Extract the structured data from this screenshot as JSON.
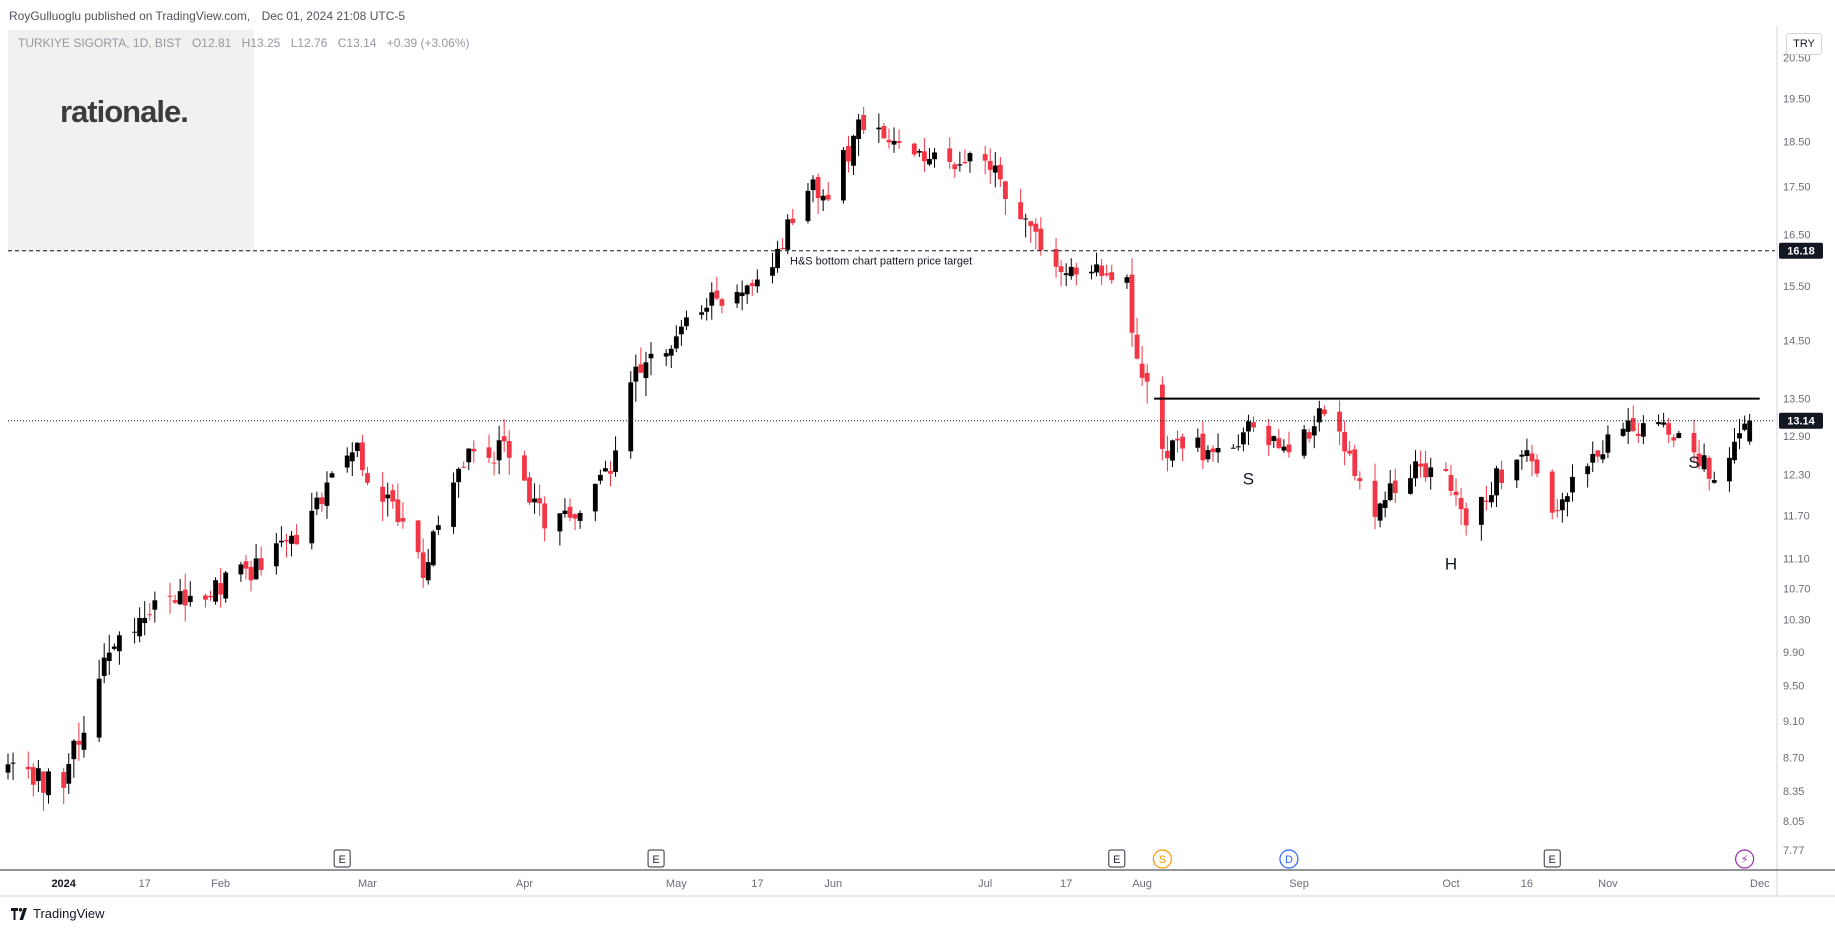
{
  "header": {
    "publisher": "RoyGulluoglu published on TradingView.com,",
    "datetime": "Dec 01, 2024 21:08 UTC-5"
  },
  "legend": {
    "symbol": "TURKIYE SIGORTA, 1D, BIST",
    "open": "O12.81",
    "high": "H13.25",
    "low": "L12.76",
    "close": "C13.14",
    "change": "+0.39 (+3.06%)"
  },
  "logo_text": "rationale.",
  "currency": "TRY",
  "footer_brand": "TradingView",
  "colors": {
    "up": "#000000",
    "down": "#f23645",
    "line": "#000000",
    "axis_text": "#6a6d78",
    "label_bg": "#131722"
  },
  "chart_data": {
    "type": "candlestick",
    "y_axis": {
      "scale": "log",
      "ticks": [
        7.77,
        8.05,
        8.35,
        8.7,
        9.1,
        9.5,
        9.9,
        10.3,
        10.7,
        11.1,
        11.7,
        12.3,
        12.9,
        13.5,
        14.5,
        15.5,
        16.5,
        17.5,
        18.5,
        19.5,
        20.5
      ],
      "tick_labels": [
        "7.77",
        "8.05",
        "8.35",
        "8.70",
        "9.10",
        "9.50",
        "9.90",
        "10.30",
        "10.70",
        "11.10",
        "11.70",
        "12.30",
        "12.90",
        "13.50",
        "14.50",
        "15.50",
        "16.50",
        "17.50",
        "18.50",
        "19.50",
        "20.50"
      ],
      "range": [
        7.6,
        21.2
      ]
    },
    "x_axis": {
      "range": [
        "2023-12-21",
        "2024-12-04"
      ],
      "ticks": [
        {
          "date": "2024-01-01",
          "label": "2024",
          "bold": true
        },
        {
          "date": "2024-01-17",
          "label": "17"
        },
        {
          "date": "2024-02-01",
          "label": "Feb"
        },
        {
          "date": "2024-03-01",
          "label": "Mar"
        },
        {
          "date": "2024-04-01",
          "label": "Apr"
        },
        {
          "date": "2024-05-01",
          "label": "May"
        },
        {
          "date": "2024-05-17",
          "label": "17"
        },
        {
          "date": "2024-06-01",
          "label": "Jun"
        },
        {
          "date": "2024-07-01",
          "label": "Jul"
        },
        {
          "date": "2024-07-17",
          "label": "17"
        },
        {
          "date": "2024-08-01",
          "label": "Aug"
        },
        {
          "date": "2024-09-01",
          "label": "Sep"
        },
        {
          "date": "2024-10-01",
          "label": "Oct"
        },
        {
          "date": "2024-10-16",
          "label": "16"
        },
        {
          "date": "2024-11-01",
          "label": "Nov"
        },
        {
          "date": "2024-12-01",
          "label": "Dec"
        }
      ]
    },
    "anchors": [
      {
        "date": "2023-12-21",
        "close": 8.55,
        "vol": 0.025
      },
      {
        "date": "2024-01-01",
        "close": 8.4,
        "vol": 0.025
      },
      {
        "date": "2024-01-12",
        "close": 10.3,
        "vol": 0.03
      },
      {
        "date": "2024-01-20",
        "close": 10.4,
        "vol": 0.025
      },
      {
        "date": "2024-02-08",
        "close": 10.95,
        "vol": 0.02
      },
      {
        "date": "2024-02-18",
        "close": 11.6,
        "vol": 0.025
      },
      {
        "date": "2024-02-26",
        "close": 12.85,
        "vol": 0.03
      },
      {
        "date": "2024-03-06",
        "close": 11.7,
        "vol": 0.025
      },
      {
        "date": "2024-03-12",
        "close": 11.0,
        "vol": 0.025
      },
      {
        "date": "2024-03-20",
        "close": 12.6,
        "vol": 0.025
      },
      {
        "date": "2024-03-28",
        "close": 12.7,
        "vol": 0.025
      },
      {
        "date": "2024-04-06",
        "close": 11.55,
        "vol": 0.02
      },
      {
        "date": "2024-04-12",
        "close": 11.7,
        "vol": 0.02
      },
      {
        "date": "2024-04-18",
        "close": 12.4,
        "vol": 0.02
      },
      {
        "date": "2024-04-22",
        "close": 14.0,
        "vol": 0.03
      },
      {
        "date": "2024-05-01",
        "close": 14.5,
        "vol": 0.02
      },
      {
        "date": "2024-05-07",
        "close": 15.2,
        "vol": 0.02
      },
      {
        "date": "2024-05-14",
        "close": 15.3,
        "vol": 0.02
      },
      {
        "date": "2024-05-21",
        "close": 16.1,
        "vol": 0.02
      },
      {
        "date": "2024-05-26",
        "close": 17.6,
        "vol": 0.025
      },
      {
        "date": "2024-06-01",
        "close": 17.3,
        "vol": 0.025
      },
      {
        "date": "2024-06-03",
        "close": 18.0,
        "vol": 0.025
      },
      {
        "date": "2024-06-06",
        "close": 18.9,
        "vol": 0.025
      },
      {
        "date": "2024-06-12",
        "close": 18.6,
        "vol": 0.02
      },
      {
        "date": "2024-06-20",
        "close": 18.2,
        "vol": 0.02
      },
      {
        "date": "2024-06-26",
        "close": 18.1,
        "vol": 0.02
      },
      {
        "date": "2024-07-02",
        "close": 17.9,
        "vol": 0.02
      },
      {
        "date": "2024-07-08",
        "close": 16.9,
        "vol": 0.025
      },
      {
        "date": "2024-07-13",
        "close": 16.0,
        "vol": 0.025
      },
      {
        "date": "2024-07-17",
        "close": 15.9,
        "vol": 0.02
      },
      {
        "date": "2024-07-25",
        "close": 15.8,
        "vol": 0.015
      },
      {
        "date": "2024-07-29",
        "close": 15.5,
        "vol": 0.02
      },
      {
        "date": "2024-07-31",
        "close": 13.9,
        "vol": 0.03
      },
      {
        "date": "2024-08-03",
        "close": 13.6,
        "vol": 0.03
      },
      {
        "date": "2024-08-05",
        "close": 12.5,
        "vol": 0.025
      },
      {
        "date": "2024-08-08",
        "close": 12.9,
        "vol": 0.02
      },
      {
        "date": "2024-08-15",
        "close": 12.6,
        "vol": 0.02
      },
      {
        "date": "2024-08-22",
        "close": 13.0,
        "vol": 0.02
      },
      {
        "date": "2024-08-30",
        "close": 12.55,
        "vol": 0.02
      },
      {
        "date": "2024-09-05",
        "close": 13.2,
        "vol": 0.02
      },
      {
        "date": "2024-09-10",
        "close": 12.7,
        "vol": 0.02
      },
      {
        "date": "2024-09-16",
        "close": 11.8,
        "vol": 0.025
      },
      {
        "date": "2024-09-22",
        "close": 12.4,
        "vol": 0.02
      },
      {
        "date": "2024-09-30",
        "close": 12.45,
        "vol": 0.02
      },
      {
        "date": "2024-10-04",
        "close": 11.4,
        "vol": 0.025
      },
      {
        "date": "2024-10-10",
        "close": 12.3,
        "vol": 0.02
      },
      {
        "date": "2024-10-16",
        "close": 12.5,
        "vol": 0.02
      },
      {
        "date": "2024-10-21",
        "close": 11.8,
        "vol": 0.02
      },
      {
        "date": "2024-10-27",
        "close": 12.3,
        "vol": 0.02
      },
      {
        "date": "2024-11-01",
        "close": 12.9,
        "vol": 0.02
      },
      {
        "date": "2024-11-08",
        "close": 13.1,
        "vol": 0.02
      },
      {
        "date": "2024-11-15",
        "close": 12.9,
        "vol": 0.02
      },
      {
        "date": "2024-11-22",
        "close": 12.3,
        "vol": 0.02
      },
      {
        "date": "2024-11-27",
        "close": 13.0,
        "vol": 0.02
      },
      {
        "date": "2024-11-29",
        "close": 13.14,
        "vol": 0.015
      }
    ],
    "last_bar": {
      "date": "2024-11-29",
      "open": 12.81,
      "high": 13.25,
      "low": 12.76,
      "close": 13.14
    },
    "neckline": {
      "value": 13.5,
      "from": "2024-08-01",
      "to": "2024-11-29"
    },
    "target_line": {
      "value": 16.18,
      "label": "16.18",
      "annotation": "H&S bottom chart pattern price target"
    },
    "last_price_line": {
      "value": 13.14,
      "label": "13.14"
    },
    "pattern_labels": [
      {
        "text": "S",
        "date": "2024-08-22",
        "value": 12.15
      },
      {
        "text": "H",
        "date": "2024-10-01",
        "value": 10.95
      },
      {
        "text": "S",
        "date": "2024-11-18",
        "value": 12.4
      }
    ],
    "events": [
      {
        "date": "2024-02-25",
        "type": "E"
      },
      {
        "date": "2024-04-27",
        "type": "E"
      },
      {
        "date": "2024-07-27",
        "type": "E"
      },
      {
        "date": "2024-08-05",
        "type": "S"
      },
      {
        "date": "2024-08-30",
        "type": "D"
      },
      {
        "date": "2024-10-21",
        "type": "E"
      },
      {
        "date": "2024-11-28",
        "type": "⚡"
      }
    ]
  }
}
